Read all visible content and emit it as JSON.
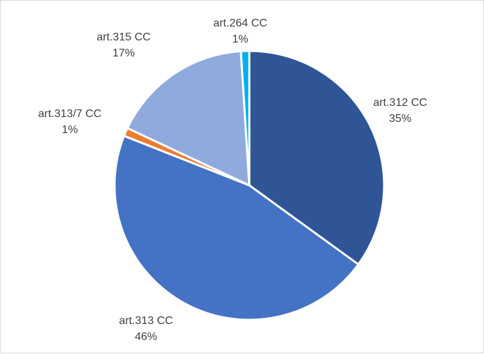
{
  "chart_data": {
    "type": "pie",
    "title": "",
    "slices": [
      {
        "label": "art.312 CC",
        "value": 35,
        "value_label": "35%",
        "color": "#2f5597"
      },
      {
        "label": "art.313 CC",
        "value": 46,
        "value_label": "46%",
        "color": "#4472c4"
      },
      {
        "label": "art.313/7 CC",
        "value": 1,
        "value_label": "1%",
        "color": "#ed7d31"
      },
      {
        "label": "art.315 CC",
        "value": 17,
        "value_label": "17%",
        "color": "#8faadc"
      },
      {
        "label": "art.264 CC",
        "value": 1,
        "value_label": "1%",
        "color": "#00b0f0"
      }
    ],
    "legend": "none",
    "start_angle_deg": 0,
    "direction": "clockwise"
  }
}
